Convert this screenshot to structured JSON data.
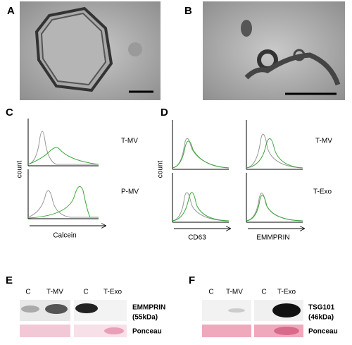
{
  "panel_a": {
    "label": "A"
  },
  "panel_b": {
    "label": "B"
  },
  "panel_c": {
    "label": "C",
    "rows": [
      "T-MV",
      "P-MV"
    ],
    "y_label": "count",
    "x_label": "Calcein"
  },
  "panel_d": {
    "label": "D",
    "rows": [
      "T-MV",
      "T-Exo"
    ],
    "y_label": "count",
    "x_labels": [
      "CD63",
      "EMMPRIN"
    ]
  },
  "panel_e": {
    "label": "E",
    "lanes": [
      "C",
      "T-MV",
      "C",
      "T-Exo"
    ],
    "blot_label": [
      "EMMPRIN",
      "(55kDa)"
    ],
    "stain_label": "Ponceau"
  },
  "panel_f": {
    "label": "F",
    "lanes": [
      "C",
      "T-MV",
      "C",
      "T-Exo"
    ],
    "blot_label": [
      "TSG101",
      "(46kDa)"
    ],
    "stain_label": "Ponceau"
  }
}
